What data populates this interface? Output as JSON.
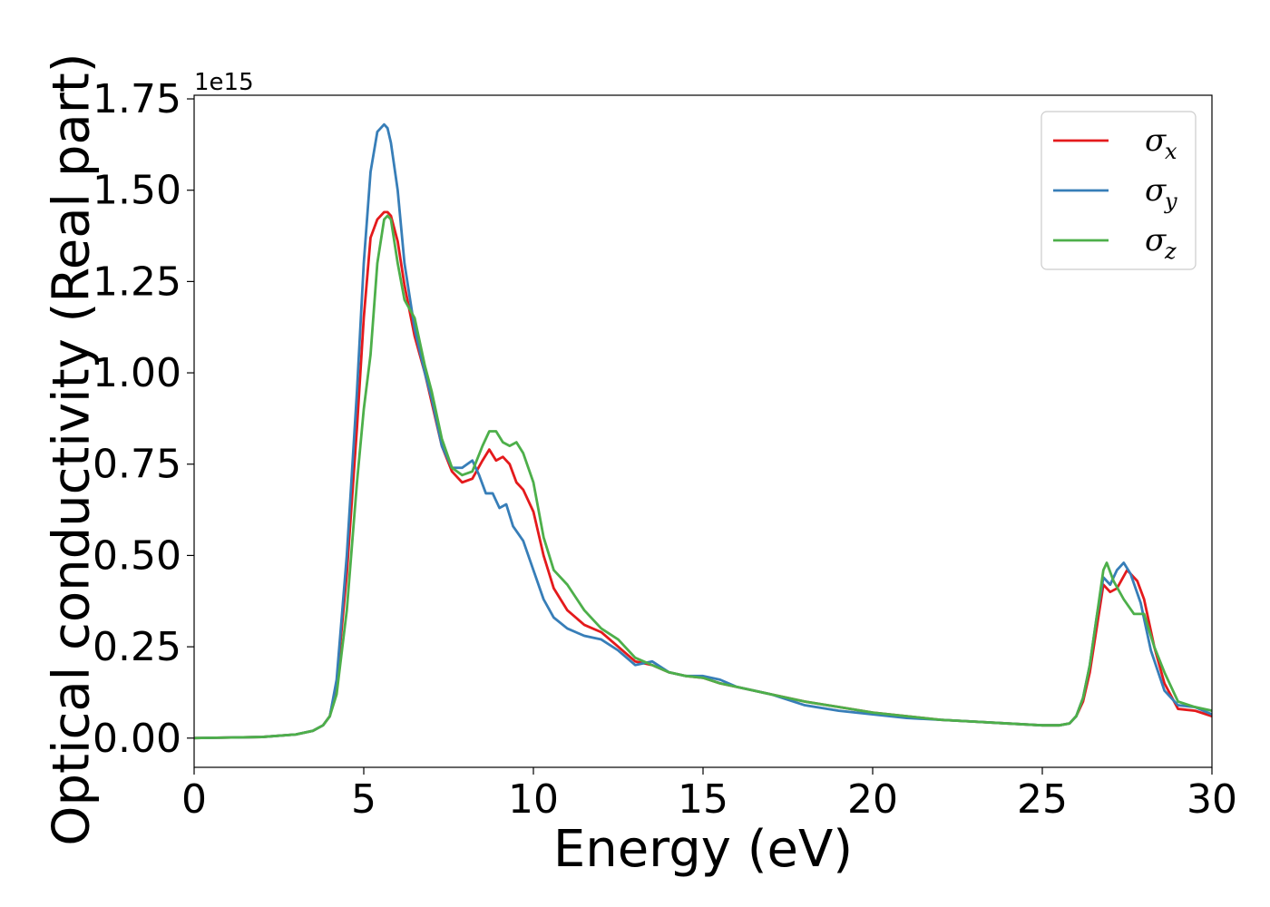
{
  "chart_data": {
    "type": "line",
    "xlabel": "Energy (eV)",
    "ylabel": "Optical conductivity (Real part)",
    "y_offset_label": "1e15",
    "xlim": [
      0,
      30
    ],
    "ylim": [
      -0.08,
      1.76
    ],
    "x_ticks": [
      0,
      5,
      10,
      15,
      20,
      25,
      30
    ],
    "x_tick_labels": [
      "0",
      "5",
      "10",
      "15",
      "20",
      "25",
      "30"
    ],
    "y_ticks": [
      0.0,
      0.25,
      0.5,
      0.75,
      1.0,
      1.25,
      1.5,
      1.75
    ],
    "y_tick_labels": [
      "0.00",
      "0.25",
      "0.50",
      "0.75",
      "1.00",
      "1.25",
      "1.50",
      "1.75"
    ],
    "grid": false,
    "legend_position": "top-right",
    "series": [
      {
        "name": "σx",
        "legend_symbol": "σ",
        "legend_subscript": "x",
        "color": "#e41a1c",
        "x": [
          0,
          2,
          3,
          3.5,
          3.8,
          4.0,
          4.2,
          4.5,
          4.8,
          5.0,
          5.2,
          5.4,
          5.6,
          5.7,
          5.8,
          6.0,
          6.2,
          6.5,
          6.8,
          7.0,
          7.3,
          7.6,
          7.9,
          8.2,
          8.5,
          8.7,
          8.9,
          9.1,
          9.3,
          9.5,
          9.7,
          10.0,
          10.3,
          10.6,
          11.0,
          11.5,
          12.0,
          12.5,
          13.0,
          13.5,
          14.0,
          14.5,
          15.0,
          15.5,
          16.0,
          17.0,
          18.0,
          19.0,
          20.0,
          21.0,
          22.0,
          23.0,
          24.0,
          25.0,
          25.5,
          25.8,
          26.0,
          26.2,
          26.4,
          26.6,
          26.8,
          27.0,
          27.2,
          27.5,
          27.8,
          28.0,
          28.3,
          28.6,
          29.0,
          29.5,
          30.0
        ],
        "y": [
          0.0,
          0.003,
          0.01,
          0.02,
          0.035,
          0.06,
          0.15,
          0.45,
          0.85,
          1.15,
          1.37,
          1.42,
          1.44,
          1.44,
          1.43,
          1.36,
          1.24,
          1.1,
          1.0,
          0.92,
          0.8,
          0.73,
          0.7,
          0.71,
          0.76,
          0.79,
          0.76,
          0.77,
          0.75,
          0.7,
          0.68,
          0.62,
          0.5,
          0.41,
          0.35,
          0.31,
          0.29,
          0.25,
          0.21,
          0.2,
          0.18,
          0.17,
          0.165,
          0.15,
          0.14,
          0.12,
          0.1,
          0.085,
          0.07,
          0.06,
          0.05,
          0.045,
          0.04,
          0.035,
          0.035,
          0.04,
          0.06,
          0.1,
          0.18,
          0.3,
          0.42,
          0.4,
          0.41,
          0.46,
          0.43,
          0.38,
          0.25,
          0.15,
          0.08,
          0.075,
          0.06
        ]
      },
      {
        "name": "σy",
        "legend_symbol": "σ",
        "legend_subscript": "y",
        "color": "#377eb8",
        "x": [
          0,
          2,
          3,
          3.5,
          3.8,
          4.0,
          4.2,
          4.5,
          4.8,
          5.0,
          5.2,
          5.4,
          5.6,
          5.7,
          5.8,
          6.0,
          6.2,
          6.5,
          6.8,
          7.0,
          7.3,
          7.6,
          7.9,
          8.2,
          8.4,
          8.6,
          8.8,
          9.0,
          9.2,
          9.4,
          9.7,
          10.0,
          10.3,
          10.6,
          11.0,
          11.5,
          12.0,
          12.5,
          13.0,
          13.5,
          14.0,
          14.5,
          15.0,
          15.5,
          16.0,
          17.0,
          18.0,
          19.0,
          20.0,
          21.0,
          22.0,
          23.0,
          24.0,
          25.0,
          25.5,
          25.8,
          26.0,
          26.2,
          26.4,
          26.6,
          26.8,
          27.0,
          27.2,
          27.4,
          27.6,
          27.9,
          28.2,
          28.6,
          29.0,
          29.5,
          30.0
        ],
        "y": [
          0.0,
          0.003,
          0.01,
          0.02,
          0.035,
          0.06,
          0.16,
          0.5,
          0.95,
          1.3,
          1.55,
          1.66,
          1.68,
          1.67,
          1.63,
          1.5,
          1.3,
          1.12,
          1.0,
          0.93,
          0.8,
          0.74,
          0.74,
          0.76,
          0.72,
          0.67,
          0.67,
          0.63,
          0.64,
          0.58,
          0.54,
          0.46,
          0.38,
          0.33,
          0.3,
          0.28,
          0.27,
          0.24,
          0.2,
          0.21,
          0.18,
          0.17,
          0.17,
          0.16,
          0.14,
          0.12,
          0.09,
          0.075,
          0.065,
          0.055,
          0.05,
          0.045,
          0.04,
          0.035,
          0.035,
          0.04,
          0.06,
          0.11,
          0.2,
          0.33,
          0.44,
          0.42,
          0.46,
          0.48,
          0.45,
          0.37,
          0.24,
          0.13,
          0.09,
          0.085,
          0.065
        ]
      },
      {
        "name": "σz",
        "legend_symbol": "σ",
        "legend_subscript": "z",
        "color": "#4daf4a",
        "x": [
          0,
          2,
          3,
          3.5,
          3.8,
          4.0,
          4.2,
          4.5,
          4.8,
          5.0,
          5.2,
          5.4,
          5.6,
          5.7,
          5.8,
          6.0,
          6.2,
          6.5,
          6.8,
          7.0,
          7.3,
          7.6,
          7.9,
          8.2,
          8.5,
          8.7,
          8.9,
          9.1,
          9.3,
          9.5,
          9.7,
          10.0,
          10.3,
          10.6,
          11.0,
          11.5,
          12.0,
          12.5,
          13.0,
          13.5,
          14.0,
          14.5,
          15.0,
          15.5,
          16.0,
          17.0,
          18.0,
          19.0,
          20.0,
          21.0,
          22.0,
          23.0,
          24.0,
          25.0,
          25.5,
          25.8,
          26.0,
          26.2,
          26.4,
          26.6,
          26.8,
          26.9,
          27.1,
          27.4,
          27.7,
          28.0,
          28.3,
          28.6,
          29.0,
          29.5,
          30.0
        ],
        "y": [
          0.0,
          0.003,
          0.01,
          0.02,
          0.035,
          0.06,
          0.12,
          0.35,
          0.7,
          0.9,
          1.05,
          1.3,
          1.42,
          1.43,
          1.42,
          1.3,
          1.2,
          1.15,
          1.02,
          0.95,
          0.82,
          0.74,
          0.72,
          0.73,
          0.8,
          0.84,
          0.84,
          0.81,
          0.8,
          0.81,
          0.78,
          0.7,
          0.55,
          0.46,
          0.42,
          0.35,
          0.3,
          0.27,
          0.22,
          0.2,
          0.18,
          0.17,
          0.165,
          0.15,
          0.14,
          0.12,
          0.1,
          0.085,
          0.07,
          0.06,
          0.05,
          0.045,
          0.04,
          0.035,
          0.035,
          0.04,
          0.06,
          0.11,
          0.2,
          0.33,
          0.46,
          0.48,
          0.43,
          0.38,
          0.34,
          0.34,
          0.25,
          0.18,
          0.1,
          0.085,
          0.075
        ]
      }
    ]
  }
}
